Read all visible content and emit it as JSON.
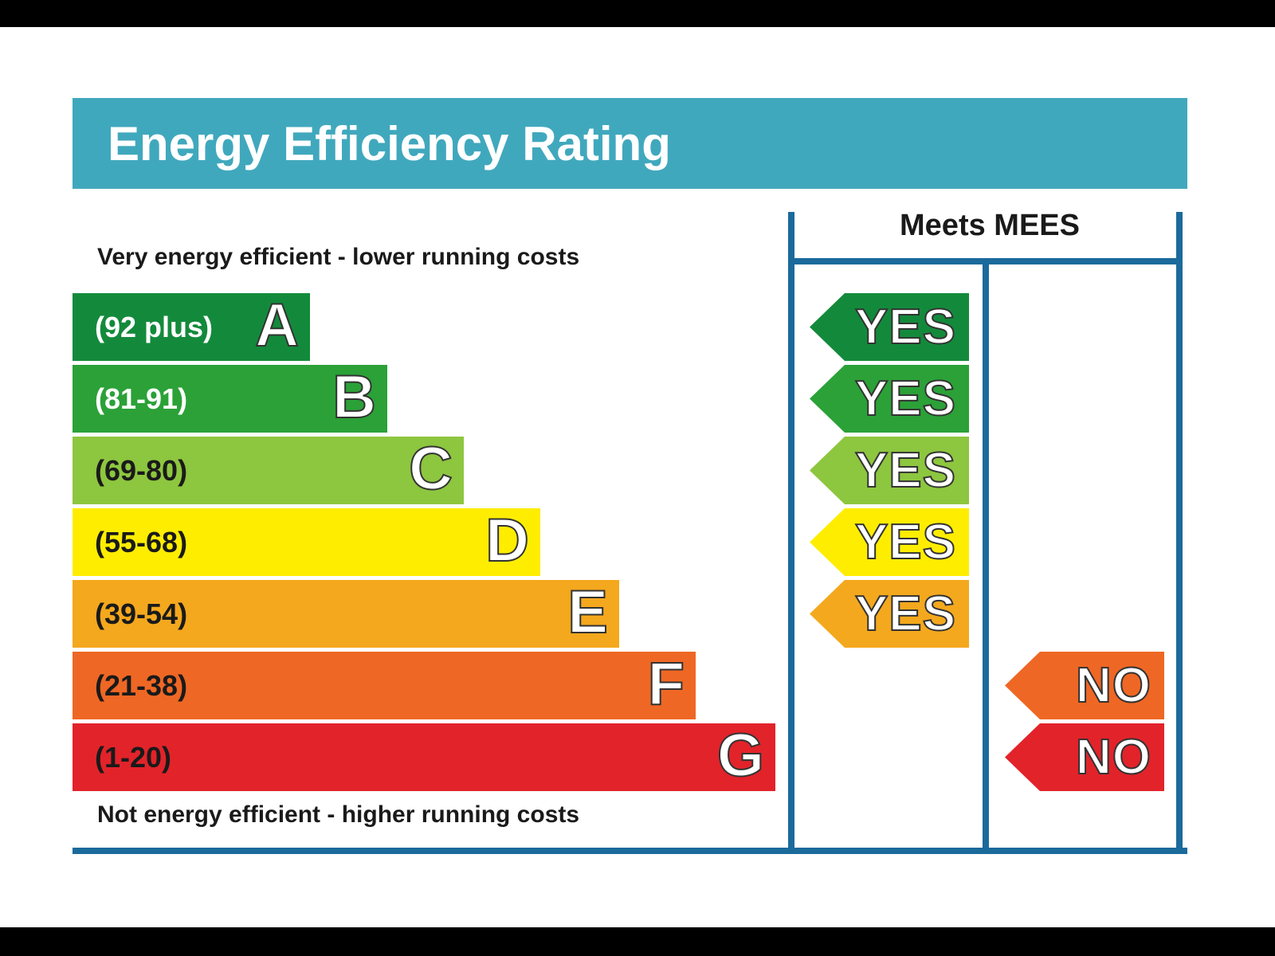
{
  "title": "Energy Efficiency Rating",
  "top_caption": "Very energy efficient - lower running costs",
  "bottom_caption": "Not energy efficient - higher running costs",
  "mees_header": "Meets MEES",
  "colors": {
    "title_bar": "#40a8bd",
    "frame": "#1b6a9c",
    "A": "#138a3b",
    "B": "#2ba138",
    "C": "#8dc63f",
    "D": "#ffed00",
    "E": "#f4a81d",
    "F": "#ef6724",
    "G": "#e2232a"
  },
  "bands": [
    {
      "range": "(92 plus)",
      "letter": "A",
      "mees": "YES",
      "range_color": "#ffffff"
    },
    {
      "range": "(81-91)",
      "letter": "B",
      "mees": "YES",
      "range_color": "#ffffff"
    },
    {
      "range": "(69-80)",
      "letter": "C",
      "mees": "YES",
      "range_color": "#1a1a1a"
    },
    {
      "range": "(55-68)",
      "letter": "D",
      "mees": "YES",
      "range_color": "#1a1a1a"
    },
    {
      "range": "(39-54)",
      "letter": "E",
      "mees": "YES",
      "range_color": "#1a1a1a"
    },
    {
      "range": "(21-38)",
      "letter": "F",
      "mees": "NO",
      "range_color": "#1a1a1a"
    },
    {
      "range": "(1-20)",
      "letter": "G",
      "mees": "NO",
      "range_color": "#1a1a1a"
    }
  ]
}
